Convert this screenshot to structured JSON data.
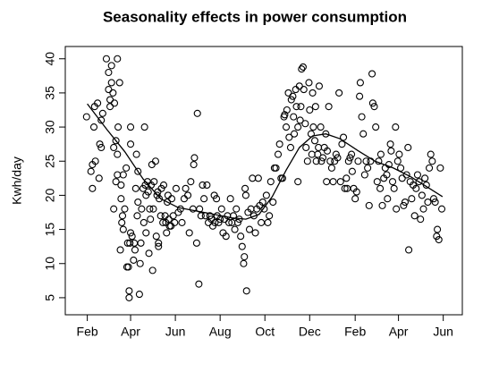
{
  "chart_data": {
    "type": "scatter",
    "title": "Seasonality effects in power consumption",
    "y_label": "Kwh/day",
    "xlim": [
      1,
      542
    ],
    "ylim": [
      2.5,
      41.8
    ],
    "xticks": [
      {
        "value": 31,
        "label": "Feb"
      },
      {
        "value": 90,
        "label": "Apr"
      },
      {
        "value": 151,
        "label": "Jun"
      },
      {
        "value": 212,
        "label": "Aug"
      },
      {
        "value": 273,
        "label": "Oct"
      },
      {
        "value": 334,
        "label": "Dec"
      },
      {
        "value": 396,
        "label": "Feb"
      },
      {
        "value": 455,
        "label": "Apr"
      },
      {
        "value": 516,
        "label": "Jun"
      }
    ],
    "yticks": [
      5,
      10,
      15,
      20,
      25,
      30,
      35,
      40
    ],
    "series": [
      {
        "type": "scatter",
        "color": "#000000",
        "x": [
          30,
          36,
          38,
          38,
          40,
          41,
          42,
          45,
          47,
          48,
          50,
          50,
          52,
          57,
          60,
          60,
          62,
          62,
          64,
          64,
          66,
          67,
          67,
          68,
          70,
          70,
          72,
          72,
          72,
          73,
          75,
          76,
          77,
          77,
          78,
          79,
          80,
          80,
          82,
          84,
          85,
          86,
          87,
          88,
          88,
          89,
          90,
          90,
          90,
          92,
          94,
          95,
          96,
          97,
          98,
          99,
          100,
          100,
          102,
          103,
          104,
          105,
          107,
          108,
          109,
          110,
          111,
          111,
          113,
          114,
          115,
          116,
          117,
          118,
          119,
          120,
          121,
          122,
          124,
          125,
          126,
          127,
          128,
          128,
          129,
          131,
          132,
          134,
          135,
          137,
          138,
          139,
          140,
          141,
          142,
          143,
          145,
          146,
          148,
          150,
          152,
          155,
          158,
          160,
          163,
          165,
          168,
          170,
          172,
          175,
          176,
          177,
          180,
          181,
          183,
          184,
          186,
          188,
          190,
          192,
          194,
          196,
          198,
          200,
          202,
          204,
          205,
          207,
          208,
          210,
          212,
          214,
          216,
          218,
          220,
          222,
          224,
          226,
          228,
          230,
          232,
          234,
          236,
          238,
          240,
          242,
          244,
          245,
          246,
          247,
          248,
          250,
          252,
          254,
          256,
          258,
          260,
          262,
          264,
          266,
          268,
          270,
          272,
          275,
          277,
          279,
          281,
          284,
          286,
          288,
          291,
          293,
          295,
          297,
          299,
          300,
          302,
          303,
          305,
          306,
          308,
          309,
          311,
          312,
          313,
          315,
          316,
          318,
          318,
          320,
          321,
          322,
          323,
          325,
          326,
          328,
          329,
          331,
          333,
          334,
          336,
          337,
          338,
          339,
          341,
          342,
          343,
          345,
          346,
          347,
          349,
          350,
          352,
          354,
          356,
          357,
          358,
          360,
          362,
          364,
          366,
          368,
          370,
          372,
          374,
          376,
          378,
          380,
          382,
          384,
          385,
          387,
          389,
          391,
          392,
          394,
          396,
          398,
          400,
          402,
          403,
          405,
          407,
          409,
          411,
          413,
          415,
          417,
          419,
          420,
          422,
          424,
          426,
          428,
          430,
          431,
          433,
          435,
          437,
          439,
          440,
          442,
          444,
          445,
          447,
          449,
          451,
          452,
          454,
          456,
          458,
          460,
          462,
          464,
          466,
          468,
          469,
          471,
          473,
          475,
          477,
          479,
          481,
          483,
          485,
          487,
          489,
          491,
          493,
          495,
          497,
          499,
          501,
          503,
          505,
          507,
          508,
          510,
          512,
          514
        ],
        "values": [
          31.5,
          23.5,
          24.5,
          21,
          30,
          33,
          25,
          33.5,
          22.5,
          27.5,
          31,
          27,
          32,
          40,
          35.5,
          38,
          34,
          33,
          39,
          36.5,
          35,
          18,
          27,
          33.5,
          28,
          22,
          40,
          26,
          23,
          30,
          36.5,
          12,
          19.5,
          21.5,
          16,
          17,
          23,
          15,
          18,
          24,
          9.5,
          13,
          9.5,
          5,
          6,
          13,
          14.5,
          27.5,
          30,
          14,
          10.5,
          13,
          12,
          21,
          26,
          17,
          23.5,
          19,
          5.5,
          10,
          13,
          18,
          21,
          16,
          30,
          21.5,
          14.5,
          20,
          22,
          20.5,
          11.5,
          18,
          16.5,
          21.5,
          24.5,
          9,
          18,
          22,
          25,
          14,
          20,
          20.5,
          13,
          12.5,
          19.5,
          17,
          21,
          16,
          21.5,
          17,
          16,
          14.5,
          19,
          20,
          16.5,
          15.5,
          15.5,
          19.5,
          17,
          16,
          21,
          17.5,
          18,
          16,
          19.5,
          21,
          20,
          14.5,
          22,
          18,
          24.5,
          25.5,
          13,
          32,
          7,
          18,
          17,
          21.5,
          19.5,
          17,
          21.5,
          16,
          17,
          16.5,
          15.5,
          20,
          16,
          19.5,
          17,
          16,
          16.5,
          18,
          14.5,
          16.5,
          14,
          17,
          16,
          19.5,
          16,
          17,
          15,
          18,
          16,
          16.5,
          14,
          12.5,
          10,
          11,
          21,
          20,
          6,
          17.5,
          15,
          18,
          22.5,
          17,
          14.5,
          18,
          22.5,
          18.5,
          16,
          19,
          18,
          20,
          16,
          17,
          22,
          19,
          24,
          24,
          26,
          27.5,
          22.5,
          22.5,
          31.5,
          31.8,
          30,
          32.5,
          35,
          28.5,
          27,
          34,
          34.5,
          31.5,
          29,
          35.5,
          33,
          22,
          30,
          36,
          31,
          33,
          38.5,
          38.8,
          35.5,
          30.5,
          27,
          25,
          36.5,
          32.5,
          29,
          26,
          35,
          30,
          28,
          33,
          25,
          26,
          27,
          36,
          30,
          25,
          25.5,
          27,
          29,
          22,
          26.5,
          33,
          25,
          24,
          22,
          25,
          26,
          25.5,
          35,
          22,
          27.5,
          28.5,
          21,
          22.5,
          21,
          25,
          25.5,
          26,
          23.5,
          21,
          19.5,
          20.5,
          25,
          34.5,
          36.5,
          31.5,
          29,
          23,
          25,
          24,
          18.5,
          25,
          37.8,
          33.5,
          33,
          30,
          22,
          25,
          21,
          26,
          18.5,
          22.5,
          24,
          23,
          19.5,
          24.5,
          27.5,
          26.5,
          22,
          21,
          30,
          18,
          25,
          26,
          24,
          22.5,
          18.5,
          19,
          23,
          27,
          12,
          22,
          19.5,
          21.5,
          17,
          21,
          23,
          22,
          16.5,
          20,
          18,
          22.5,
          21.5,
          19,
          24,
          26,
          25,
          19.5,
          19,
          14,
          15,
          13.5,
          24,
          18
        ]
      },
      {
        "type": "line",
        "color": "#000000",
        "x": [
          31,
          58,
          82,
          107,
          131,
          155,
          180,
          204,
          228,
          247,
          265,
          283,
          302,
          320,
          338,
          356,
          375,
          399,
          423,
          448,
          472,
          496,
          515
        ],
        "values": [
          33.4,
          29.6,
          26.4,
          22.4,
          19.5,
          18.2,
          17.7,
          17.2,
          16.7,
          16.5,
          17.2,
          19.8,
          23.7,
          27.0,
          28.7,
          29.0,
          28.3,
          26.6,
          25.0,
          24.0,
          22.7,
          21.1,
          19.8
        ]
      }
    ]
  }
}
